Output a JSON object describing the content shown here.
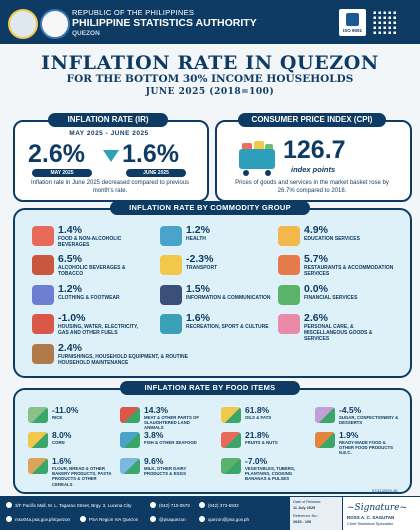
{
  "header": {
    "republic": "REPUBLIC OF THE PHILIPPINES",
    "agency": "PHILIPPINE STATISTICS AUTHORITY",
    "office": "QUEZON",
    "iso_label": "ISO 9001"
  },
  "title": "INFLATION RATE IN QUEZON",
  "subtitle": "FOR THE BOTTOM 30% INCOME HOUSEHOLDS",
  "period": "JUNE 2025 (2018=100)",
  "ir": {
    "label": "INFLATION RATE (IR)",
    "range": "MAY 2025 - JUNE 2025",
    "may_value": "2.6%",
    "june_value": "1.6%",
    "may_tag": "MAY 2025",
    "june_tag": "JUNE 2025",
    "note": "Inflation rate in June 2025 decreased compared to previous month's rate."
  },
  "cpi": {
    "label": "CONSUMER PRICE INDEX (CPI)",
    "value": "126.7",
    "unit": "index points",
    "note": "Prices of goods and services in the market basket rose by 26.7% compared to 2018."
  },
  "commodity": {
    "label": "INFLATION RATE  BY COMMODITY GROUP",
    "items": [
      {
        "value": "1.4%",
        "label": "FOOD & NON-ALCOHOLIC BEVERAGES",
        "icon": "food-icon",
        "color": "#e86a5b"
      },
      {
        "value": "1.2%",
        "label": "HEALTH",
        "icon": "health-icon",
        "color": "#4aa3c9"
      },
      {
        "value": "4.9%",
        "label": "EDUCATION SERVICES",
        "icon": "education-icon",
        "color": "#f2b84b"
      },
      {
        "value": "6.5%",
        "label": "ALCOHOLIC BEVERAGES & TOBACCO",
        "icon": "alcohol-icon",
        "color": "#c9563e"
      },
      {
        "value": "-2.3%",
        "label": "TRANSPORT",
        "icon": "transport-icon",
        "color": "#f2c84b"
      },
      {
        "value": "5.7%",
        "label": "RESTAURANTS & ACCOMMODATION SERVICES",
        "icon": "restaurant-icon",
        "color": "#e57a4b"
      },
      {
        "value": "1.2%",
        "label": "CLOTHING & FOOTWEAR",
        "icon": "clothing-icon",
        "color": "#6e7fd1"
      },
      {
        "value": "1.5%",
        "label": "INFORMATION & COMMUNICATION",
        "icon": "communication-icon",
        "color": "#3b4f7a"
      },
      {
        "value": "0.0%",
        "label": "FINANCIAL SERVICES",
        "icon": "finance-icon",
        "color": "#59b36b"
      },
      {
        "value": "-1.0%",
        "label": "HOUSING, WATER, ELECTRICITY, GAS AND OTHER FUELS",
        "icon": "housing-icon",
        "color": "#d9584a"
      },
      {
        "value": "1.6%",
        "label": "RECREATION, SPORT & CULTURE",
        "icon": "recreation-icon",
        "color": "#3aa0b8"
      },
      {
        "value": "2.6%",
        "label": "PERSONAL CARE, & MISCELLANEOUS GOODS & SERVICES",
        "icon": "personal-care-icon",
        "color": "#e98aa8"
      },
      {
        "value": "2.4%",
        "label": "FURNISHINGS, HOUSEHOLD EQUIPMENT, & ROUTINE HOUSEHOLD MAINTENANCE",
        "icon": "furnishings-icon",
        "color": "#b07a4a"
      }
    ]
  },
  "food": {
    "label": "INFLATION RATE BY FOOD ITEMS",
    "items": [
      {
        "value": "-11.0%",
        "label": "RICE",
        "icon": "rice-icon",
        "color": "#8bc08a"
      },
      {
        "value": "14.3%",
        "label": "MEAT & OTHER PARTS OF SLAUGHTERED LAND ANIMALS",
        "icon": "meat-icon",
        "color": "#d9584a"
      },
      {
        "value": "61.8%",
        "label": "OILS & FATS",
        "icon": "oil-icon",
        "color": "#f2c84b"
      },
      {
        "value": "-4.5%",
        "label": "SUGAR, CONFECTIONERY & DESSERTS",
        "icon": "sugar-icon",
        "color": "#c0a0d8"
      },
      {
        "value": "8.0%",
        "label": "CORN",
        "icon": "corn-icon",
        "color": "#f2c84b"
      },
      {
        "value": "3.8%",
        "label": "FISH & OTHER SEAFOOD",
        "icon": "fish-icon",
        "color": "#4aa3c9"
      },
      {
        "value": "21.8%",
        "label": "FRUITS & NUTS",
        "icon": "fruit-icon",
        "color": "#e86a5b"
      },
      {
        "value": "1.9%",
        "label": "READY-MADE FOOD & OTHER FOOD PRODUCTS N.E.C.",
        "icon": "ready-food-icon",
        "color": "#e5843e"
      },
      {
        "value": "1.6%",
        "label": "FLOUR, BREAD & OTHER BAKERY PRODUCTS, PASTA PRODUCTS & OTHER CEREALS",
        "icon": "bread-icon",
        "color": "#d9a55b"
      },
      {
        "value": "9.6%",
        "label": "MILK, OTHER DAIRY PRODUCTS & EGGS",
        "icon": "milk-icon",
        "color": "#7ab8e0"
      },
      {
        "value": "-7.0%",
        "label": "VEGETABLES, TUBERS, PLANTAINS, COOKING BANANAS & PULSES",
        "icon": "vegetable-icon",
        "color": "#59b36b"
      }
    ]
  },
  "footer": {
    "address": "3/F Pacific Mall, M. L. Tagarao Street, Brgy. 3, Lucena City",
    "phone1": "(042) 710-0579",
    "phone2": "(042) 373-6932",
    "website": "rsso04a.psa.gov.ph/quezon",
    "facebook": "PSA Region IVA Quezon",
    "twitter": "@psaquezon",
    "email": "quezon@psa.gov.ph",
    "date_label": "Date of Release:",
    "date_value": "11 July 2025",
    "ref_label": "Reference No.:",
    "ref_value": "2025 - 109",
    "signer": "ROSS A. C. SAGUTAN",
    "signer_title": "Chief Statistical Specialist",
    "doc_code": "07/11/2025-16"
  }
}
